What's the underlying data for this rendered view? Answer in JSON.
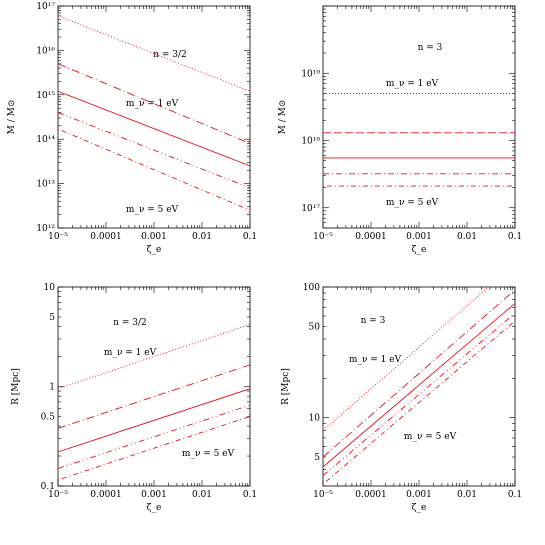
{
  "chart_data": [
    {
      "type": "line",
      "x_scale": "log",
      "y_scale": "log",
      "xlim": [
        1e-05,
        0.1
      ],
      "ylim": [
        1000000000000.0,
        1e+17
      ],
      "xlabel": "ζ_e",
      "ylabel": "M / M⊙",
      "xticks": [
        "10⁻⁵",
        "0.0001",
        "0.001",
        "0.01",
        "0.1"
      ],
      "yticks": [
        "10¹²",
        "10¹³",
        "10¹⁴",
        "10¹⁵",
        "10¹⁶",
        "10¹⁷"
      ],
      "annotations": [
        "n = 3/2",
        "m_ν = 1 eV",
        "m_ν = 5 eV"
      ],
      "series": [
        {
          "dash": "1,2",
          "x": [
            1e-05,
            0.1
          ],
          "y": [
            6e+16,
            1200000000000000.0
          ]
        },
        {
          "dash": "8,3,1,3",
          "x": [
            1e-05,
            0.1
          ],
          "y": [
            5000000000000000.0,
            80000000000000.0
          ]
        },
        {
          "dash": "none",
          "x": [
            1e-05,
            0.1
          ],
          "y": [
            1200000000000000.0,
            25000000000000.0
          ]
        },
        {
          "dash": "6,3,1,3,1,3",
          "x": [
            1e-05,
            0.1
          ],
          "y": [
            400000000000000.0,
            8000000000000.0
          ]
        },
        {
          "dash": "1,3,5,3",
          "x": [
            1e-05,
            0.1
          ],
          "y": [
            170000000000000.0,
            2500000000000.0
          ]
        }
      ]
    },
    {
      "type": "line",
      "x_scale": "log",
      "y_scale": "log",
      "xlim": [
        1e-05,
        0.1
      ],
      "ylim": [
        5e+16,
        1e+20
      ],
      "xlabel": "ζ_e",
      "ylabel": "M / M⊙",
      "xticks": [
        "10⁻⁵",
        "0.0001",
        "0.001",
        "0.01",
        "0.1"
      ],
      "yticks": [
        "10¹⁷",
        "10¹⁸",
        "10¹⁹"
      ],
      "annotations": [
        "n = 3",
        "m_ν = 1 eV",
        "m_ν = 5 eV"
      ],
      "series": [
        {
          "dash": "1,2",
          "x": [
            1e-05,
            0.1
          ],
          "y": [
            5e+18,
            5e+18
          ]
        },
        {
          "dash": "8,3",
          "x": [
            1e-05,
            0.1
          ],
          "y": [
            1.3e+18,
            1.3e+18
          ]
        },
        {
          "dash": "none",
          "x": [
            1e-05,
            0.1
          ],
          "y": [
            5.5e+17,
            5.5e+17
          ]
        },
        {
          "dash": "6,3,1,3",
          "x": [
            1e-05,
            0.1
          ],
          "y": [
            3.2e+17,
            3.2e+17
          ]
        },
        {
          "dash": "1,3,5,3",
          "x": [
            1e-05,
            0.1
          ],
          "y": [
            2.1e+17,
            2.1e+17
          ]
        }
      ]
    },
    {
      "type": "line",
      "x_scale": "log",
      "y_scale": "log",
      "xlim": [
        1e-05,
        0.1
      ],
      "ylim": [
        0.1,
        10
      ],
      "xlabel": "ζ_e",
      "ylabel": "R [Mpc]",
      "xticks": [
        "10⁻⁵",
        "0.0001",
        "0.001",
        "0.01",
        "0.1"
      ],
      "yticks": [
        "0.1",
        "0.5",
        "1",
        "5",
        "10"
      ],
      "annotations": [
        "n = 3/2",
        "m_ν = 1 eV",
        "m_ν = 5 eV"
      ],
      "series": [
        {
          "dash": "1,2",
          "x": [
            1e-05,
            0.1
          ],
          "y": [
            0.95,
            4.2
          ]
        },
        {
          "dash": "8,3,1,3",
          "x": [
            1e-05,
            0.1
          ],
          "y": [
            0.38,
            1.65
          ]
        },
        {
          "dash": "none",
          "x": [
            1e-05,
            0.1
          ],
          "y": [
            0.22,
            0.95
          ]
        },
        {
          "dash": "6,3,1,3,1,3",
          "x": [
            1e-05,
            0.1
          ],
          "y": [
            0.15,
            0.65
          ]
        },
        {
          "dash": "1,3,5,3",
          "x": [
            1e-05,
            0.1
          ],
          "y": [
            0.115,
            0.5
          ]
        }
      ]
    },
    {
      "type": "line",
      "x_scale": "log",
      "y_scale": "log",
      "xlim": [
        1e-05,
        0.1
      ],
      "ylim": [
        3,
        100
      ],
      "xlabel": "ζ_e",
      "ylabel": "R [Mpc]",
      "xticks": [
        "10⁻⁵",
        "0.0001",
        "0.001",
        "0.01",
        "0.1"
      ],
      "yticks": [
        "5",
        "10",
        "50",
        "100"
      ],
      "annotations": [
        "n = 3",
        "m_ν = 1 eV",
        "m_ν = 5 eV"
      ],
      "series": [
        {
          "dash": "1,2",
          "x": [
            1e-05,
            0.1
          ],
          "y": [
            8,
            150
          ]
        },
        {
          "dash": "8,3,1,3",
          "x": [
            1e-05,
            0.1
          ],
          "y": [
            5,
            95
          ]
        },
        {
          "dash": "none",
          "x": [
            1e-05,
            0.1
          ],
          "y": [
            4.2,
            75
          ]
        },
        {
          "dash": "6,3,1,3,1,3",
          "x": [
            1e-05,
            0.1
          ],
          "y": [
            3.6,
            63
          ]
        },
        {
          "dash": "1,3,5,3",
          "x": [
            1e-05,
            0.1
          ],
          "y": [
            3.1,
            55
          ]
        }
      ]
    }
  ]
}
